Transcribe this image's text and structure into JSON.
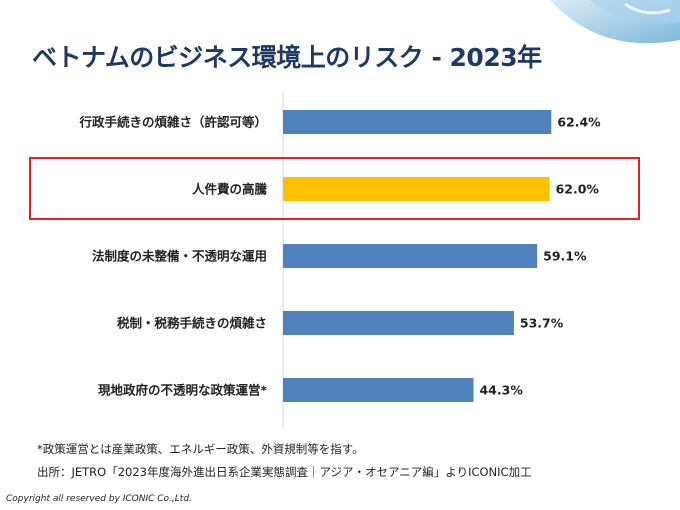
{
  "title": "ベトナムのビジネス環境上のリスク - 2023年",
  "colors": {
    "bar": "#4f81bd",
    "highlight_bar": "#ffc000",
    "highlight_box": "#e0202a",
    "title": "#1f3864"
  },
  "chart_data": {
    "type": "bar",
    "orientation": "horizontal",
    "categories": [
      "行政手続きの煩雑さ（許認可等）",
      "人件費の高騰",
      "法制度の未整備・不透明な運用",
      "税制・税務手続きの煩雑さ",
      "現地政府の不透明な政策運営*"
    ],
    "values": [
      62.4,
      62.0,
      59.1,
      53.7,
      44.3
    ],
    "value_labels": [
      "62.4%",
      "62.0%",
      "59.1%",
      "53.7%",
      "44.3%"
    ],
    "highlighted_index": 1,
    "xlim": [
      0,
      100
    ],
    "grid": false
  },
  "footnotes": {
    "note": "*政策運営とは産業政策、エネルギー政策、外資規制等を指す。",
    "source": "出所：JETRO「2023年度海外進出日系企業実態調査｜アジア・オセアニア編」よりICONIC加工"
  },
  "copyright": "Copyright all reserved by ICONIC Co.,Ltd."
}
